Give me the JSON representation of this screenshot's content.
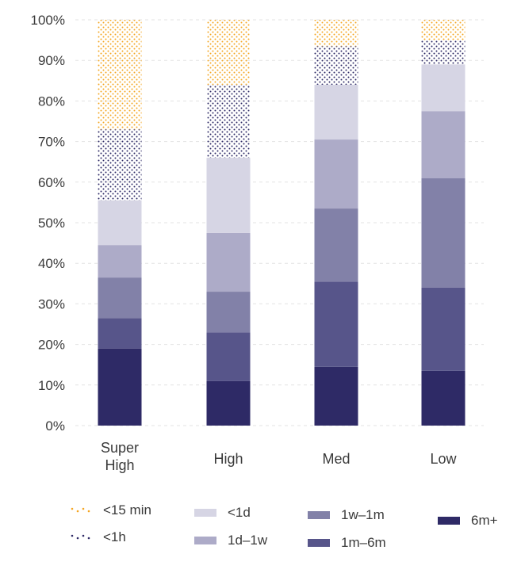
{
  "chart_data": {
    "type": "bar",
    "stacked": true,
    "categories": [
      "Super\nHigh",
      "High",
      "Med",
      "Low"
    ],
    "y_ticks": [
      "0%",
      "10%",
      "20%",
      "30%",
      "40%",
      "50%",
      "60%",
      "70%",
      "80%",
      "90%",
      "100%"
    ],
    "ylim": [
      0,
      100
    ],
    "grid": true,
    "legend_placement": "bottom",
    "series": [
      {
        "name": "6m+",
        "values": [
          19,
          11,
          14.5,
          13.5
        ],
        "color": "#2e2a66",
        "pattern": "solid"
      },
      {
        "name": "1m–6m",
        "values": [
          7.5,
          12,
          21,
          20.5
        ],
        "color": "#57558a",
        "pattern": "solid"
      },
      {
        "name": "1w–1m",
        "values": [
          10,
          10,
          18,
          27
        ],
        "color": "#8281a8",
        "pattern": "solid"
      },
      {
        "name": "1d–1w",
        "values": [
          8,
          14.5,
          17,
          16.5
        ],
        "color": "#adabc8",
        "pattern": "solid"
      },
      {
        "name": "<1d",
        "values": [
          11,
          18.5,
          13.5,
          11.5
        ],
        "color": "#d6d5e4",
        "pattern": "solid"
      },
      {
        "name": "<1h",
        "values": [
          17.5,
          18,
          9.5,
          6
        ],
        "color": "#2e2a66",
        "pattern": "dots"
      },
      {
        "name": "<15 min",
        "values": [
          27,
          16,
          6.5,
          5
        ],
        "color": "#f5a623",
        "pattern": "dots"
      }
    ]
  },
  "legend": [
    {
      "label": "<15 min",
      "pattern": "dots",
      "color": "#f5a623"
    },
    {
      "label": "<1h",
      "pattern": "dots",
      "color": "#2e2a66"
    },
    {
      "label": "<1d",
      "pattern": "solid",
      "color": "#d6d5e4"
    },
    {
      "label": "1d–1w",
      "pattern": "solid",
      "color": "#adabc8"
    },
    {
      "label": "1w–1m",
      "pattern": "solid",
      "color": "#8281a8"
    },
    {
      "label": "1m–6m",
      "pattern": "solid",
      "color": "#57558a"
    },
    {
      "label": "6m+",
      "pattern": "solid",
      "color": "#2e2a66"
    }
  ]
}
